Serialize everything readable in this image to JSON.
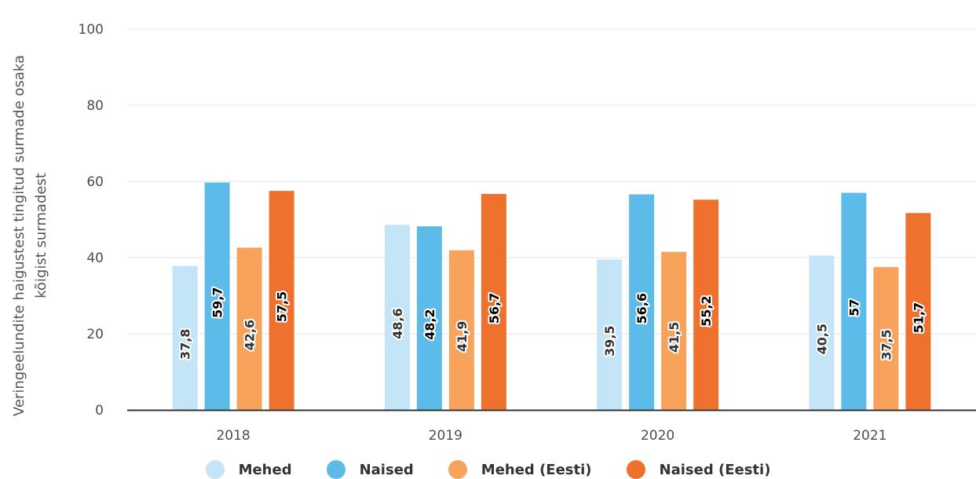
{
  "chart_data": {
    "type": "bar",
    "categories": [
      "2018",
      "2019",
      "2020",
      "2021"
    ],
    "series": [
      {
        "name": "Mehed",
        "color": "#c3e5f7",
        "values": [
          37.8,
          48.6,
          39.5,
          40.5
        ],
        "labels": [
          "37,8",
          "48,6",
          "39,5",
          "40,5"
        ]
      },
      {
        "name": "Naised",
        "color": "#5dbbea",
        "values": [
          59.7,
          48.2,
          56.6,
          57
        ],
        "labels": [
          "59,7",
          "48,2",
          "56,6",
          "57"
        ]
      },
      {
        "name": "Mehed (Eesti)",
        "color": "#f7a35c",
        "values": [
          42.6,
          41.9,
          41.5,
          37.5
        ],
        "labels": [
          "42,6",
          "41,9",
          "41,5",
          "37,5"
        ]
      },
      {
        "name": "Naised (Eesti)",
        "color": "#ee722e",
        "values": [
          57.5,
          56.7,
          55.2,
          51.7
        ],
        "labels": [
          "57,5",
          "56,7",
          "55,2",
          "51,7"
        ]
      }
    ],
    "ylim": [
      0,
      100
    ],
    "yticks": [
      "0",
      "20",
      "40",
      "60",
      "80",
      "100"
    ],
    "ylabel_line1": "Veringeelundite haigustest tingitud surmade osaka",
    "ylabel_line2": "kõigist surmadest",
    "xlabel": "",
    "grid": true,
    "legend_position": "bottom"
  }
}
